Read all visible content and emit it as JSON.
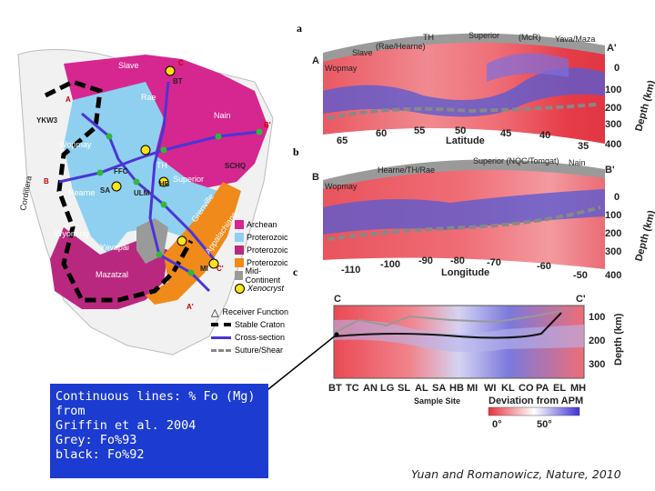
{
  "map": {
    "provinces": [
      "Archean",
      "Proterozoic",
      "Proterozoic",
      "Proterozoic",
      "Mid-Continent",
      "Xenocryst"
    ],
    "legend": [
      "Receiver Function",
      "Stable Craton",
      "Cross-section",
      "Suture/Shear"
    ],
    "labels": {
      "cordillera": "Cordillera",
      "wopmay": "Wopmay",
      "hearne": "Hearne",
      "rae": "Rae",
      "slave": "Slave",
      "nain": "Nain",
      "superior": "Superior",
      "grenville": "Grenville",
      "appalachians": "Appalachians",
      "wyoming": "Wyoming",
      "yavapai": "Yavapai",
      "mazatzal": "Mazatzal",
      "th": "TH",
      "yko": "YKW3",
      "ffc": "FFC",
      "schq": "SCHQ",
      "ulm": "ULM",
      "sa": "SA",
      "hb": "HB",
      "mi": "MI",
      "bt": "BT",
      "c": "C",
      "a": "A",
      "b": "B",
      "ap": "A'",
      "bp": "B'",
      "cp": "C'"
    }
  },
  "panel_a": {
    "letter": "a",
    "top_labels": [
      "Wopmay",
      "Slave",
      "(Rae/Hearne)",
      "TH",
      "Superior",
      "(McR)",
      "Yava/Maza"
    ],
    "end_left": "A",
    "end_right": "A'",
    "x_ticks": [
      "65",
      "60",
      "55",
      "50",
      "45",
      "40",
      "35"
    ],
    "x_label": "Latitude",
    "y_ticks": [
      "0",
      "100",
      "200",
      "300",
      "400"
    ],
    "y_label": "Depth (km)"
  },
  "panel_b": {
    "letter": "b",
    "top_labels": [
      "Wopmay",
      "Hearne/TH/Rae",
      "Superior (NQC/Tomgat)",
      "Nain"
    ],
    "end_left": "B",
    "end_right": "B'",
    "x_ticks": [
      "-110",
      "-100",
      "-90",
      "-80",
      "-70",
      "-60",
      "-50"
    ],
    "x_label": "Longitude",
    "y_ticks": [
      "0",
      "100",
      "200",
      "300",
      "400"
    ],
    "y_label": "Depth (km)"
  },
  "panel_c": {
    "letter": "c",
    "end_left": "C",
    "end_right": "C'",
    "x_ticks": [
      "BT",
      "TC",
      "AN",
      "LG",
      "SL",
      "AL",
      "SA",
      "HB",
      "MI",
      "WI",
      "KL",
      "CO",
      "PA",
      "EL",
      "MH"
    ],
    "x_label": "Sample Site",
    "y_ticks": [
      "100",
      "200",
      "300"
    ],
    "y_label": "Depth (km)",
    "scale_label": "Deviation from APM",
    "scale_ticks": [
      "0°",
      "50°"
    ]
  },
  "note": {
    "line1": "Continuous lines: % Fo (Mg)",
    "line2": "from",
    "line3": "Griffin et al. 2004",
    "line4": "Grey: Fo%93",
    "line5": "black: Fo%92"
  },
  "citation": "Yuan and Romanowicz, Nature, 2010"
}
